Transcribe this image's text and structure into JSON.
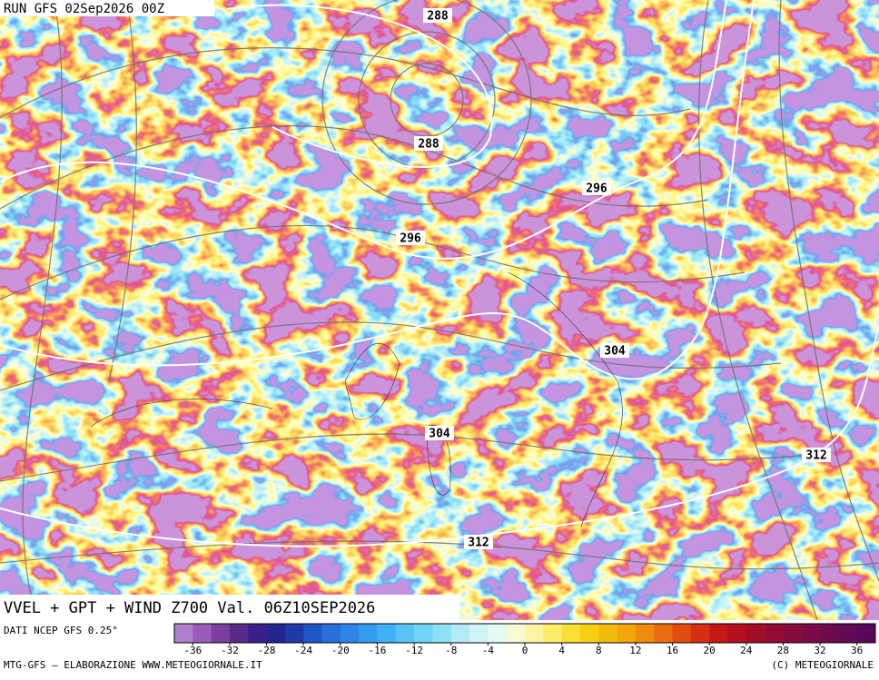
{
  "header": {
    "run": "RUN GFS 02Sep2026 00Z",
    "title": "VVEL + GPT + WIND Z700 Val. 06Z10SEP2026"
  },
  "contour_labels": [
    "288",
    "288",
    "296",
    "296",
    "304",
    "304",
    "312",
    "312"
  ],
  "footer": {
    "source": "DATI NCEP GFS 0.25°",
    "credit": "MTG-GFS — ELABORAZIONE WWW.METEOGIORNALE.IT",
    "copyright": "(C) METEOGIORNALE"
  },
  "colorbar": {
    "lim": [
      -38,
      38
    ],
    "ticks": [
      -36,
      -32,
      -28,
      -24,
      -20,
      -16,
      -12,
      -8,
      -4,
      0,
      4,
      8,
      12,
      16,
      20,
      24,
      28,
      32,
      36
    ],
    "colors": [
      "#b07fc9",
      "#9a5cb8",
      "#7a3e9e",
      "#5a2a88",
      "#3a1f8a",
      "#25248f",
      "#1d3aa8",
      "#1f55c4",
      "#2a6fd8",
      "#2d86e6",
      "#329cf0",
      "#3fb0f4",
      "#57c3f6",
      "#6fd3f6",
      "#8fe0f4",
      "#b2ebf5",
      "#d0f4f6",
      "#e6faf4",
      "#f8fbd2",
      "#fbf4a0",
      "#fbec6a",
      "#f9de35",
      "#f6cf12",
      "#f4bc0a",
      "#f2a60a",
      "#ef8c0c",
      "#ea6d10",
      "#e24c12",
      "#d62e14",
      "#c51818",
      "#b30f1e",
      "#a20d28",
      "#940c34",
      "#870c3e",
      "#7a0b46",
      "#6d0a4c",
      "#620a52",
      "#560958"
    ]
  }
}
